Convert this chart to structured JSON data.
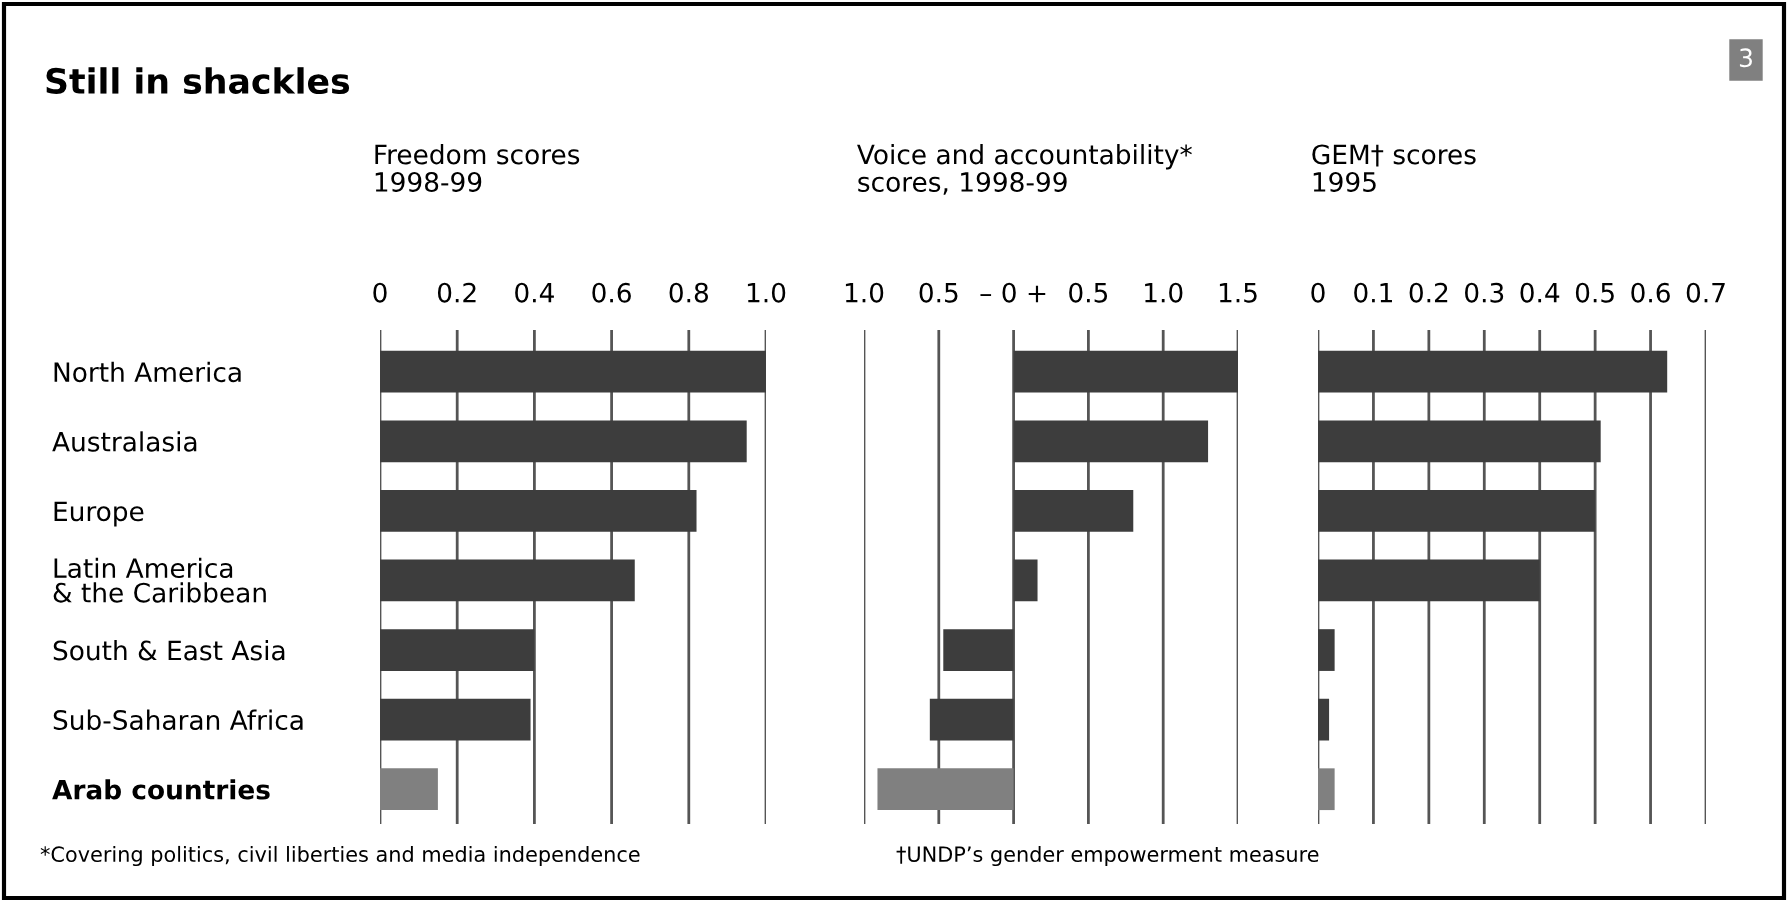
{
  "chart_data": [
    {
      "type": "bar",
      "orientation": "horizontal",
      "title": "Still in shackles",
      "subtitle": "Freedom scores\n1998-99",
      "categories": [
        "North America",
        "Australasia",
        "Europe",
        "Latin America\n& the Caribbean",
        "South & East Asia",
        "Sub-Saharan Africa",
        "Arab countries"
      ],
      "values": [
        1.0,
        0.95,
        0.82,
        0.66,
        0.4,
        0.39,
        0.15
      ],
      "colors": [
        "#3d3d3d",
        "#3d3d3d",
        "#3d3d3d",
        "#3d3d3d",
        "#3d3d3d",
        "#3d3d3d",
        "#808080"
      ],
      "xlim": [
        0,
        1.0
      ],
      "xticks": [
        0,
        0.2,
        0.4,
        0.6,
        0.8,
        {
          "value": 1.0,
          "label": "1.0"
        }
      ],
      "grid": "x",
      "annotations": [
        "3"
      ]
    },
    {
      "type": "bar",
      "orientation": "horizontal",
      "subtitle": "Voice and accountability*\nscores, 1998-99",
      "categories": [
        null,
        null,
        null,
        null,
        null,
        null,
        null
      ],
      "values": [
        1.5,
        1.3,
        0.8,
        0.16,
        -0.47,
        -0.56,
        -0.91
      ],
      "colors": [
        "#3d3d3d",
        "#3d3d3d",
        "#3d3d3d",
        "#3d3d3d",
        "#3d3d3d",
        "#3d3d3d",
        "#808080"
      ],
      "xlim": [
        -1.0,
        1.5
      ],
      "xticks": [
        {
          "value": -1.0,
          "label": "1.0"
        },
        {
          "value": -0.5,
          "label": "0.5"
        },
        {
          "value": 0,
          "label": "– 0 +"
        },
        0.5,
        {
          "value": 1.0,
          "label": "1.0"
        },
        1.5
      ],
      "grid": "x",
      "tick_labels": "x",
      "annotations": [
        "*Covering politics, civil liberties and media independence"
      ]
    },
    {
      "type": "bar",
      "orientation": "horizontal",
      "subtitle": "GEM† scores\n1995",
      "categories": [
        null,
        null,
        null,
        null,
        null,
        null,
        null
      ],
      "values": [
        0.63,
        0.51,
        0.5,
        0.4,
        0.03,
        0.02,
        0.03
      ],
      "colors": [
        "#3d3d3d",
        "#3d3d3d",
        "#3d3d3d",
        "#3d3d3d",
        "#3d3d3d",
        "#3d3d3d",
        "#808080"
      ],
      "xlim": [
        0,
        0.7
      ],
      "xticks": [
        0,
        0.1,
        0.2,
        0.3,
        0.4,
        0.5,
        0.6,
        0.7
      ],
      "grid": "x",
      "tick_labels": "x",
      "annotations": [
        "†UNDP’s gender empowerment measure"
      ]
    }
  ]
}
